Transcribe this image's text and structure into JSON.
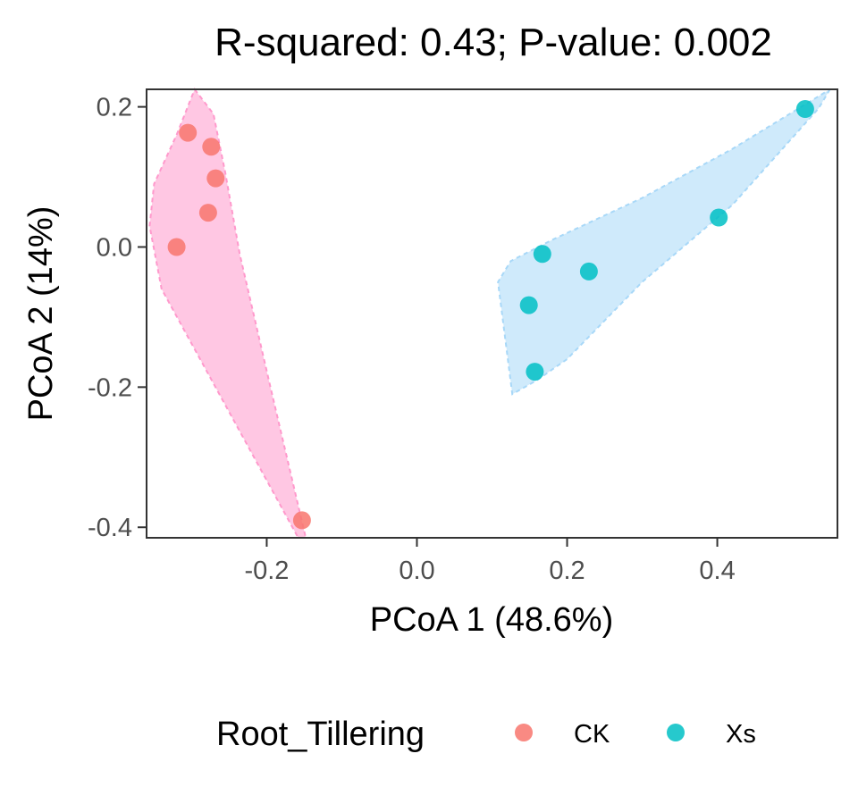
{
  "chart_data": {
    "type": "scatter",
    "title": "R-squared: 0.43; P-value: 0.002",
    "xlabel": "PCoA 1 (48.6%)",
    "ylabel": "PCoA 2 (14%)",
    "xlim": [
      -0.36,
      0.56
    ],
    "ylim": [
      -0.415,
      0.225
    ],
    "x_ticks": [
      -0.2,
      0.0,
      0.2,
      0.4
    ],
    "x_tick_labels": [
      "-0.2",
      "0.0",
      "0.2",
      "0.4"
    ],
    "y_ticks": [
      0.2,
      0.0,
      -0.2,
      -0.4
    ],
    "y_tick_labels": [
      "0.2",
      "0.0",
      "-0.2",
      "-0.4"
    ],
    "grid": false,
    "legend": {
      "title": "Root_Tillering",
      "position": "bottom",
      "entries": [
        "CK",
        "Xs"
      ]
    },
    "series": [
      {
        "name": "CK",
        "color": "#F8766D",
        "hull_color": "#FF99CC",
        "points": [
          {
            "x": -0.305,
            "y": 0.163
          },
          {
            "x": -0.274,
            "y": 0.143
          },
          {
            "x": -0.268,
            "y": 0.098
          },
          {
            "x": -0.278,
            "y": 0.049
          },
          {
            "x": -0.32,
            "y": 0.0
          },
          {
            "x": -0.153,
            "y": -0.39
          }
        ],
        "hull": [
          {
            "x": -0.296,
            "y": 0.225
          },
          {
            "x": -0.271,
            "y": 0.19
          },
          {
            "x": -0.255,
            "y": 0.105
          },
          {
            "x": -0.236,
            "y": -0.01
          },
          {
            "x": -0.195,
            "y": -0.2
          },
          {
            "x": -0.148,
            "y": -0.415
          },
          {
            "x": -0.158,
            "y": -0.415
          },
          {
            "x": -0.34,
            "y": -0.06
          },
          {
            "x": -0.356,
            "y": 0.03
          },
          {
            "x": -0.35,
            "y": 0.09
          },
          {
            "x": -0.32,
            "y": 0.16
          }
        ]
      },
      {
        "name": "Xs",
        "color": "#00BFC4",
        "hull_color": "#A8D8F8",
        "points": [
          {
            "x": 0.517,
            "y": 0.197
          },
          {
            "x": 0.402,
            "y": 0.042
          },
          {
            "x": 0.167,
            "y": -0.01
          },
          {
            "x": 0.229,
            "y": -0.035
          },
          {
            "x": 0.149,
            "y": -0.083
          },
          {
            "x": 0.157,
            "y": -0.178
          }
        ],
        "hull": [
          {
            "x": 0.55,
            "y": 0.225
          },
          {
            "x": 0.535,
            "y": 0.198
          },
          {
            "x": 0.42,
            "y": 0.06
          },
          {
            "x": 0.3,
            "y": -0.05
          },
          {
            "x": 0.2,
            "y": -0.16
          },
          {
            "x": 0.16,
            "y": -0.19
          },
          {
            "x": 0.127,
            "y": -0.21
          },
          {
            "x": 0.108,
            "y": -0.05
          },
          {
            "x": 0.125,
            "y": -0.02
          },
          {
            "x": 0.18,
            "y": 0.01
          },
          {
            "x": 0.3,
            "y": 0.07
          },
          {
            "x": 0.42,
            "y": 0.14
          }
        ]
      }
    ]
  }
}
